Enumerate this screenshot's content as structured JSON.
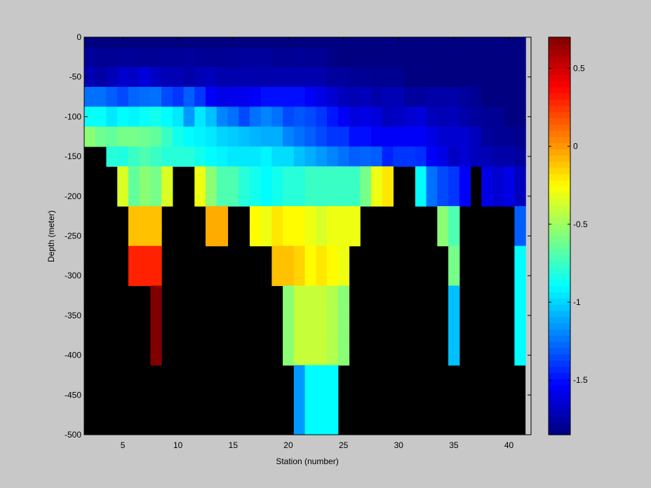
{
  "figure": {
    "background": "#c8c8c8"
  },
  "chart_data": {
    "type": "heatmap",
    "title": "",
    "xlabel": "Station (number)",
    "ylabel": "Depth (meter)",
    "xlim": [
      1.5,
      42
    ],
    "ylim": [
      -500,
      0
    ],
    "x_ticks": [
      5,
      10,
      15,
      20,
      25,
      30,
      35,
      40
    ],
    "y_ticks": [
      0,
      -50,
      -100,
      -150,
      -200,
      -250,
      -300,
      -350,
      -400,
      -450,
      -500
    ],
    "stations": [
      2,
      3,
      4,
      5,
      6,
      7,
      8,
      9,
      10,
      11,
      12,
      13,
      14,
      15,
      16,
      17,
      18,
      19,
      20,
      21,
      22,
      23,
      24,
      25,
      26,
      27,
      28,
      29,
      30,
      31,
      32,
      33,
      34,
      35,
      36,
      37,
      38,
      39,
      40,
      41
    ],
    "depths": [
      -3,
      -25,
      -50,
      -75,
      -100,
      -125,
      -150,
      -175,
      -200,
      -225,
      -250,
      -275,
      -300,
      -325,
      -350,
      -375,
      -400,
      -425,
      -450,
      -475,
      -500
    ],
    "no_data_color": "#000000",
    "colormap": "jet",
    "colorbar": {
      "range": [
        -1.85,
        0.7
      ],
      "ticks": [
        0.5,
        0,
        -0.5,
        -1,
        -1.5
      ]
    },
    "values": [
      [
        -1.85,
        -1.85,
        -1.85,
        -1.85,
        -1.85,
        -1.85,
        -1.85,
        -1.85,
        -1.85,
        -1.85,
        -1.85,
        -1.85,
        -1.85,
        -1.85,
        -1.85,
        -1.85,
        -1.85,
        -1.85,
        -1.85,
        -1.85,
        -1.85,
        -1.85,
        -1.85,
        -1.85,
        -1.85,
        -1.85,
        -1.85,
        -1.85,
        -1.85,
        -1.85,
        -1.85,
        -1.85,
        -1.85,
        -1.85,
        -1.85,
        -1.85,
        -1.85,
        -1.85,
        -1.85,
        -1.85
      ],
      [
        -1.78,
        -1.8,
        -1.8,
        -1.79,
        -1.79,
        -1.8,
        -1.8,
        -1.79,
        -1.79,
        -1.78,
        -1.79,
        -1.8,
        -1.8,
        -1.79,
        -1.78,
        -1.78,
        -1.78,
        -1.8,
        -1.8,
        -1.79,
        -1.8,
        -1.8,
        -1.83,
        -1.85,
        -1.85,
        -1.85,
        -1.85,
        -1.85,
        -1.85,
        -1.85,
        -1.85,
        -1.85,
        -1.85,
        -1.85,
        -1.85,
        -1.85,
        -1.85,
        -1.85,
        -1.85,
        -1.85
      ],
      [
        -1.72,
        -1.76,
        -1.72,
        -1.66,
        -1.68,
        -1.62,
        -1.68,
        -1.72,
        -1.72,
        -1.75,
        -1.72,
        -1.7,
        -1.74,
        -1.74,
        -1.74,
        -1.74,
        -1.74,
        -1.74,
        -1.74,
        -1.74,
        -1.74,
        -1.74,
        -1.78,
        -1.78,
        -1.8,
        -1.8,
        -1.81,
        -1.81,
        -1.81,
        -1.85,
        -1.85,
        -1.85,
        -1.85,
        -1.85,
        -1.85,
        -1.85,
        -1.85,
        -1.85,
        -1.85,
        -1.85
      ],
      [
        -1.25,
        -1.25,
        -1.3,
        -1.35,
        -1.28,
        -1.26,
        -1.25,
        -1.35,
        -1.4,
        -1.3,
        -1.4,
        -1.55,
        -1.6,
        -1.58,
        -1.58,
        -1.55,
        -1.5,
        -1.5,
        -1.5,
        -1.5,
        -1.55,
        -1.6,
        -1.65,
        -1.7,
        -1.72,
        -1.7,
        -1.75,
        -1.72,
        -1.72,
        -1.78,
        -1.78,
        -1.75,
        -1.75,
        -1.75,
        -1.78,
        -1.8,
        -1.85,
        -1.85,
        -1.85,
        -1.85
      ],
      [
        -0.88,
        -0.88,
        -0.95,
        -0.9,
        -0.92,
        -0.88,
        -0.85,
        -0.9,
        -0.95,
        -1.15,
        -0.95,
        -1.05,
        -1.2,
        -1.25,
        -1.35,
        -1.25,
        -1.2,
        -1.25,
        -1.35,
        -1.32,
        -1.35,
        -1.4,
        -1.48,
        -1.55,
        -1.62,
        -1.6,
        -1.62,
        -1.7,
        -1.68,
        -1.65,
        -1.62,
        -1.7,
        -1.72,
        -1.7,
        -1.75,
        -1.78,
        -1.8,
        -1.8,
        -1.85,
        -1.85
      ],
      [
        -0.55,
        -0.62,
        -0.65,
        -0.6,
        -0.6,
        -0.62,
        -0.65,
        -0.75,
        -0.85,
        -0.9,
        -0.92,
        -0.95,
        -1.0,
        -1.02,
        -1.05,
        -1.08,
        -1.1,
        -1.1,
        -1.2,
        -1.25,
        -1.3,
        -1.35,
        -1.4,
        -1.4,
        -1.5,
        -1.5,
        -1.55,
        -1.55,
        -1.55,
        -1.55,
        -1.55,
        -1.6,
        -1.65,
        -1.65,
        -1.65,
        -1.7,
        -1.78,
        -1.8,
        -1.8,
        -1.82
      ],
      [
        null,
        null,
        -0.8,
        -0.82,
        -0.75,
        -0.7,
        -0.75,
        -0.8,
        -0.8,
        -0.8,
        -0.85,
        -0.9,
        -0.92,
        -0.95,
        -0.95,
        -0.95,
        -0.92,
        -0.98,
        -0.98,
        -1.05,
        -1.1,
        -1.15,
        -1.2,
        -1.25,
        -1.3,
        -1.28,
        -1.3,
        -1.45,
        -1.4,
        -1.4,
        -1.42,
        -1.55,
        -1.6,
        -1.68,
        -1.65,
        -1.7,
        -1.72,
        -1.75,
        -1.75,
        -1.78
      ],
      [
        null,
        null,
        null,
        -0.35,
        -0.65,
        -0.55,
        -0.6,
        -0.35,
        null,
        null,
        -0.3,
        -0.55,
        -0.7,
        -0.7,
        -0.8,
        -0.85,
        -0.9,
        -0.85,
        -0.8,
        -0.8,
        -0.75,
        -0.75,
        -0.75,
        -0.75,
        -0.75,
        -0.6,
        -0.3,
        -0.2,
        null,
        null,
        -0.9,
        -1.25,
        -1.35,
        -1.4,
        -1.55,
        null,
        -1.6,
        -1.65,
        -1.6,
        -1.7
      ],
      [
        null,
        null,
        null,
        -0.35,
        -0.65,
        -0.55,
        -0.6,
        -0.35,
        null,
        null,
        -0.3,
        -0.55,
        -0.7,
        -0.7,
        -0.8,
        -0.85,
        -0.9,
        -0.85,
        -0.8,
        -0.8,
        -0.75,
        -0.75,
        -0.75,
        -0.75,
        -0.75,
        -0.6,
        -0.3,
        -0.2,
        null,
        null,
        -0.9,
        -1.25,
        -1.35,
        -1.4,
        -1.55,
        null,
        -1.6,
        -1.65,
        -1.6,
        -1.7
      ],
      [
        null,
        null,
        null,
        null,
        -0.1,
        -0.1,
        -0.1,
        null,
        null,
        null,
        null,
        -0.05,
        -0.05,
        null,
        null,
        -0.25,
        -0.3,
        -0.2,
        -0.25,
        -0.25,
        -0.3,
        -0.35,
        -0.3,
        -0.3,
        -0.3,
        null,
        null,
        null,
        null,
        null,
        null,
        null,
        -0.55,
        -0.7,
        null,
        null,
        null,
        null,
        null,
        -1.3
      ],
      [
        null,
        null,
        null,
        null,
        -0.1,
        -0.1,
        -0.1,
        null,
        null,
        null,
        null,
        -0.05,
        -0.05,
        null,
        null,
        -0.25,
        -0.3,
        -0.2,
        -0.25,
        -0.25,
        -0.3,
        -0.35,
        -0.3,
        -0.3,
        -0.3,
        null,
        null,
        null,
        null,
        null,
        null,
        null,
        -0.55,
        -0.7,
        null,
        null,
        null,
        null,
        null,
        -1.3
      ],
      [
        null,
        null,
        null,
        null,
        0.3,
        0.3,
        0.3,
        null,
        null,
        null,
        null,
        null,
        null,
        null,
        null,
        null,
        null,
        -0.1,
        -0.1,
        -0.15,
        -0.25,
        -0.2,
        -0.25,
        -0.3,
        null,
        null,
        null,
        null,
        null,
        null,
        null,
        null,
        null,
        -0.6,
        null,
        null,
        null,
        null,
        null,
        -0.9
      ],
      [
        null,
        null,
        null,
        null,
        0.3,
        0.3,
        0.3,
        null,
        null,
        null,
        null,
        null,
        null,
        null,
        null,
        null,
        null,
        -0.1,
        -0.1,
        -0.15,
        -0.25,
        -0.2,
        -0.25,
        -0.3,
        null,
        null,
        null,
        null,
        null,
        null,
        null,
        null,
        null,
        -0.6,
        null,
        null,
        null,
        null,
        null,
        -0.9
      ],
      [
        null,
        null,
        null,
        null,
        null,
        null,
        0.7,
        null,
        null,
        null,
        null,
        null,
        null,
        null,
        null,
        null,
        null,
        null,
        -0.55,
        -0.4,
        -0.4,
        -0.4,
        -0.45,
        -0.55,
        null,
        null,
        null,
        null,
        null,
        null,
        null,
        null,
        null,
        -1.05,
        null,
        null,
        null,
        null,
        null,
        -0.9
      ],
      [
        null,
        null,
        null,
        null,
        null,
        null,
        0.7,
        null,
        null,
        null,
        null,
        null,
        null,
        null,
        null,
        null,
        null,
        null,
        -0.55,
        -0.4,
        -0.4,
        -0.4,
        -0.45,
        -0.55,
        null,
        null,
        null,
        null,
        null,
        null,
        null,
        null,
        null,
        -1.05,
        null,
        null,
        null,
        null,
        null,
        -0.9
      ],
      [
        null,
        null,
        null,
        null,
        null,
        null,
        0.7,
        null,
        null,
        null,
        null,
        null,
        null,
        null,
        null,
        null,
        null,
        null,
        -0.55,
        -0.4,
        -0.4,
        -0.4,
        -0.45,
        -0.55,
        null,
        null,
        null,
        null,
        null,
        null,
        null,
        null,
        null,
        -1.05,
        null,
        null,
        null,
        null,
        null,
        -0.9
      ],
      [
        null,
        null,
        null,
        null,
        null,
        null,
        0.7,
        null,
        null,
        null,
        null,
        null,
        null,
        null,
        null,
        null,
        null,
        null,
        -0.55,
        -0.4,
        -0.4,
        -0.4,
        -0.45,
        -0.55,
        null,
        null,
        null,
        null,
        null,
        null,
        null,
        null,
        null,
        -1.05,
        null,
        null,
        null,
        null,
        null,
        -0.9
      ],
      [
        null,
        null,
        null,
        null,
        null,
        null,
        null,
        null,
        null,
        null,
        null,
        null,
        null,
        null,
        null,
        null,
        null,
        null,
        null,
        -1.15,
        -0.9,
        -0.9,
        -0.9,
        null,
        null,
        null,
        null,
        null,
        null,
        null,
        null,
        null,
        null,
        null,
        null,
        null,
        null,
        null,
        null,
        null
      ],
      [
        null,
        null,
        null,
        null,
        null,
        null,
        null,
        null,
        null,
        null,
        null,
        null,
        null,
        null,
        null,
        null,
        null,
        null,
        null,
        -1.15,
        -0.9,
        -0.9,
        -0.9,
        null,
        null,
        null,
        null,
        null,
        null,
        null,
        null,
        null,
        null,
        null,
        null,
        null,
        null,
        null,
        null,
        null
      ],
      [
        null,
        null,
        null,
        null,
        null,
        null,
        null,
        null,
        null,
        null,
        null,
        null,
        null,
        null,
        null,
        null,
        null,
        null,
        null,
        -1.15,
        -0.9,
        -0.9,
        -0.9,
        null,
        null,
        null,
        null,
        null,
        null,
        null,
        null,
        null,
        null,
        null,
        null,
        null,
        null,
        null,
        null,
        null
      ],
      [
        null,
        null,
        null,
        null,
        null,
        null,
        null,
        null,
        null,
        null,
        null,
        null,
        null,
        null,
        null,
        null,
        null,
        null,
        null,
        -1.15,
        -0.9,
        -0.9,
        -0.9,
        null,
        null,
        null,
        null,
        null,
        null,
        null,
        null,
        null,
        null,
        null,
        null,
        null,
        null,
        null,
        null,
        null
      ]
    ]
  }
}
